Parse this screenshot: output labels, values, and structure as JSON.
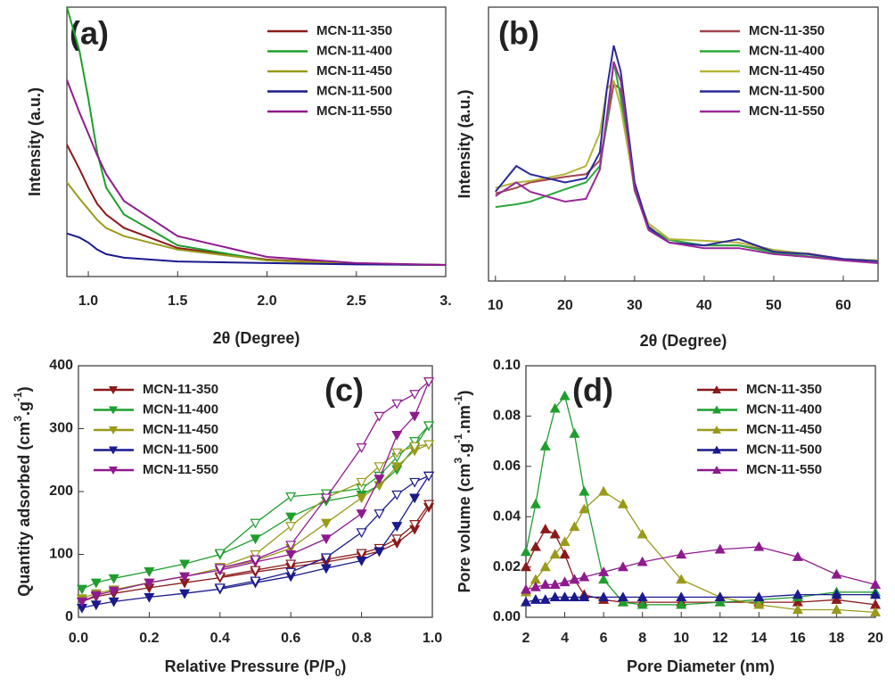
{
  "chart_data": [
    {
      "type": "line",
      "panel_label": "(a)",
      "x_label": "2θ (Degree)",
      "y_label": [
        "Intensity (a.u.)"
      ],
      "xlim": [
        0.88,
        3.0
      ],
      "ylim": [
        0,
        100
      ],
      "xticks": [
        {
          "value": 1,
          "label": "1.0"
        },
        1.5,
        {
          "value": 2,
          "label": "2.0"
        },
        2.5,
        {
          "value": 3,
          "label": "3."
        }
      ],
      "legend": "upper right",
      "x": [
        0.88,
        0.95,
        1.0,
        1.05,
        1.1,
        1.2,
        1.5,
        2.0,
        2.5,
        3.0
      ],
      "series": [
        {
          "name": "MCN-11-350",
          "color": "#8b1a1a",
          "values": [
            49,
            40,
            33,
            27,
            23,
            18,
            10.6,
            6.3,
            4.8,
            4.3
          ]
        },
        {
          "name": "MCN-11-400",
          "color": "#1f9e2e",
          "values": [
            100,
            84,
            66,
            46,
            33,
            23,
            11.6,
            6,
            4.6,
            4.3
          ]
        },
        {
          "name": "MCN-11-450",
          "color": "#9a9a1a",
          "values": [
            35,
            29,
            25,
            21,
            18,
            15,
            10,
            6,
            4.7,
            4.3
          ]
        },
        {
          "name": "MCN-11-500",
          "color": "#1a1a8c",
          "values": [
            16,
            14.5,
            12.6,
            10,
            8.3,
            7,
            5.6,
            5,
            4.5,
            4.3
          ]
        },
        {
          "name": "MCN-11-550",
          "color": "#8e1b8e",
          "values": [
            73,
            61,
            53,
            45,
            38,
            28,
            15,
            7.3,
            5,
            4.3
          ]
        }
      ]
    },
    {
      "type": "line",
      "panel_label": "(b)",
      "x_label": "2θ (Degree)",
      "y_label": [
        "Intensity (a.u.)"
      ],
      "xlim": [
        9,
        65
      ],
      "ylim": [
        0,
        100
      ],
      "xticks": [
        10,
        20,
        30,
        40,
        50,
        60
      ],
      "legend": "upper right",
      "x": [
        10,
        13,
        15,
        20,
        23,
        25,
        26,
        27,
        28,
        30,
        32,
        35,
        40,
        45,
        50,
        55,
        60,
        65
      ],
      "series": [
        {
          "name": "MCN-11-350",
          "color": "#a0454f",
          "values": [
            32,
            34,
            36,
            38,
            39,
            44,
            57,
            72,
            70,
            34,
            20,
            14,
            13,
            13,
            11,
            10,
            8,
            7.5
          ]
        },
        {
          "name": "MCN-11-400",
          "color": "#2aa83a",
          "values": [
            27,
            28,
            29,
            33.5,
            36,
            42,
            57,
            80,
            67,
            33,
            19.5,
            15,
            13,
            13,
            10.4,
            9,
            8,
            7.5
          ]
        },
        {
          "name": "MCN-11-450",
          "color": "#b5b53a",
          "values": [
            34,
            36,
            36.5,
            39,
            42,
            54,
            70,
            73,
            63.5,
            34,
            21,
            15.3,
            14.7,
            14,
            11.4,
            9.8,
            8,
            7.5
          ]
        },
        {
          "name": "MCN-11-500",
          "color": "#2a2a9a",
          "values": [
            32.6,
            42,
            39,
            36,
            37.5,
            47,
            70,
            86,
            76.5,
            36,
            19.5,
            14,
            13,
            15.3,
            10.7,
            9.8,
            8,
            7.2
          ]
        },
        {
          "name": "MCN-11-550",
          "color": "#9a2a9a",
          "values": [
            31,
            36,
            32.6,
            29,
            30,
            40.7,
            60,
            80,
            73,
            33.5,
            18.6,
            14,
            12,
            12,
            9.8,
            8.8,
            7.5,
            6.5
          ]
        }
      ]
    },
    {
      "type": "line",
      "panel_label": "(c)",
      "marker": "triangle-down",
      "x_label": [
        "Relative Pressure (P/P",
        "0",
        ")"
      ],
      "y_label": [
        "Quantity adsorbed (cm",
        "3",
        ".g",
        "-1",
        ")"
      ],
      "xlim": [
        0,
        1
      ],
      "ylim": [
        0,
        400
      ],
      "xticks": [
        {
          "value": 0,
          "label": "0.0"
        },
        0.2,
        0.4,
        0.6,
        0.8,
        {
          "value": 1,
          "label": "1.0"
        }
      ],
      "yticks": [
        0,
        100,
        200,
        300,
        400
      ],
      "legend": "upper left",
      "x": [
        0.01,
        0.05,
        0.1,
        0.2,
        0.3,
        0.4,
        0.5,
        0.6,
        0.7,
        0.8,
        0.85,
        0.9,
        0.95,
        0.99
      ],
      "series": [
        {
          "name": "MCN-11-350",
          "color": "#8b1a1a",
          "values": [
            25,
            33,
            38,
            47,
            55,
            63,
            72,
            80,
            88,
            98,
            105,
            118,
            140,
            175
          ],
          "desorption": [
            null,
            null,
            null,
            null,
            null,
            65,
            75,
            85,
            92,
            102,
            110,
            125,
            148,
            180
          ]
        },
        {
          "name": "MCN-11-400",
          "color": "#1f9e2e",
          "values": [
            45,
            55,
            62,
            73,
            85,
            100,
            125,
            160,
            185,
            195,
            210,
            235,
            270,
            305
          ],
          "desorption": [
            null,
            null,
            null,
            null,
            null,
            102,
            150,
            192,
            197,
            205,
            225,
            255,
            280,
            305
          ]
        },
        {
          "name": "MCN-11-450",
          "color": "#9a9a1a",
          "values": [
            30,
            38,
            44,
            55,
            65,
            78,
            90,
            110,
            150,
            190,
            210,
            240,
            265,
            275
          ],
          "desorption": [
            null,
            null,
            null,
            null,
            null,
            80,
            100,
            145,
            190,
            215,
            240,
            262,
            272,
            275
          ]
        },
        {
          "name": "MCN-11-500",
          "color": "#1a1a8c",
          "values": [
            15,
            20,
            25,
            32,
            38,
            45,
            55,
            65,
            78,
            90,
            105,
            145,
            190,
            225
          ],
          "desorption": [
            null,
            null,
            null,
            null,
            null,
            47,
            58,
            72,
            95,
            135,
            165,
            195,
            215,
            225
          ]
        },
        {
          "name": "MCN-11-550",
          "color": "#8e1b8e",
          "values": [
            25,
            35,
            42,
            55,
            65,
            75,
            88,
            100,
            125,
            165,
            220,
            290,
            320,
            375
          ],
          "desorption": [
            null,
            null,
            null,
            null,
            null,
            78,
            92,
            115,
            190,
            270,
            320,
            340,
            355,
            375
          ]
        }
      ]
    },
    {
      "type": "line",
      "panel_label": "(d)",
      "marker": "triangle-up",
      "x_label": [
        "Pore Diameter (nm)"
      ],
      "y_label": [
        "Pore volume (cm",
        "3",
        ".g",
        "-1",
        ".nm",
        "-1",
        ")"
      ],
      "xlim": [
        2,
        20
      ],
      "ylim": [
        0,
        0.1
      ],
      "xticks": [
        2,
        4,
        6,
        8,
        10,
        12,
        14,
        16,
        18,
        20
      ],
      "yticks": [
        {
          "value": 0,
          "label": "0.00"
        },
        0.02,
        0.04,
        0.06,
        0.08,
        {
          "value": 0.1,
          "label": "0.10"
        }
      ],
      "legend": "upper right",
      "x": [
        2,
        2.5,
        3,
        3.5,
        4,
        4.5,
        5,
        6,
        7,
        8,
        10,
        12,
        14,
        16,
        18,
        20
      ],
      "series": [
        {
          "name": "MCN-11-350",
          "color": "#8b1a1a",
          "values": [
            0.02,
            0.028,
            0.035,
            0.033,
            0.025,
            0.015,
            0.009,
            0.007,
            0.006,
            0.006,
            0.006,
            0.006,
            0.006,
            0.006,
            0.007,
            0.005
          ]
        },
        {
          "name": "MCN-11-400",
          "color": "#1f9e2e",
          "values": [
            0.026,
            0.045,
            0.068,
            0.083,
            0.088,
            0.073,
            0.05,
            0.015,
            0.006,
            0.005,
            0.005,
            0.006,
            0.007,
            0.008,
            0.01,
            0.01
          ]
        },
        {
          "name": "MCN-11-450",
          "color": "#9a9a1a",
          "values": [
            0.01,
            0.015,
            0.02,
            0.025,
            0.03,
            0.036,
            0.043,
            0.05,
            0.045,
            0.033,
            0.015,
            0.008,
            0.005,
            0.003,
            0.003,
            0.002
          ]
        },
        {
          "name": "MCN-11-500",
          "color": "#1a1a8c",
          "values": [
            0.006,
            0.007,
            0.007,
            0.008,
            0.008,
            0.008,
            0.008,
            0.008,
            0.008,
            0.008,
            0.008,
            0.008,
            0.008,
            0.009,
            0.009,
            0.009
          ]
        },
        {
          "name": "MCN-11-550",
          "color": "#8e1b8e",
          "values": [
            0.011,
            0.012,
            0.013,
            0.013,
            0.014,
            0.015,
            0.016,
            0.018,
            0.02,
            0.022,
            0.025,
            0.027,
            0.028,
            0.024,
            0.017,
            0.013
          ]
        }
      ]
    }
  ]
}
